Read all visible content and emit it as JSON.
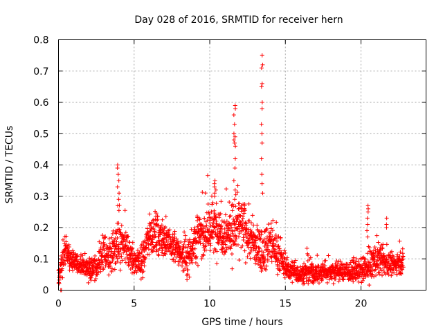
{
  "chart_data": {
    "type": "scatter",
    "title": "Day 028 of 2016, SRMTID for receiver hern",
    "xlabel": "GPS time / hours",
    "ylabel": "SRMTID / TECUs",
    "xlim": [
      0,
      24.3
    ],
    "ylim": [
      0,
      0.8
    ],
    "xticks": [
      0,
      5,
      10,
      15,
      20
    ],
    "xtick_labels": [
      "0",
      "5",
      "10",
      "15",
      "20"
    ],
    "yticks": [
      0,
      0.1,
      0.2,
      0.3,
      0.4,
      0.5,
      0.6,
      0.7,
      0.8
    ],
    "ytick_labels": [
      "0",
      "0.1",
      "0.2",
      "0.3",
      "0.4",
      "0.5",
      "0.6",
      "0.7",
      "0.8"
    ],
    "grid": true,
    "marker": "plus",
    "color": "#ff0000",
    "point_count": 2400,
    "envelope": {
      "x": [
        0.0,
        0.3,
        0.5,
        1.0,
        1.5,
        2.0,
        2.5,
        3.0,
        3.5,
        4.0,
        4.5,
        5.0,
        5.5,
        6.0,
        6.5,
        7.0,
        7.5,
        8.0,
        8.5,
        9.0,
        9.5,
        10.0,
        10.5,
        11.0,
        11.5,
        12.0,
        12.5,
        13.0,
        13.5,
        14.0,
        14.5,
        15.0,
        15.5,
        16.0,
        16.5,
        17.0,
        17.5,
        18.0,
        18.5,
        19.0,
        19.5,
        20.0,
        20.5,
        21.0,
        21.5,
        22.0,
        22.8
      ],
      "center": [
        0.04,
        0.1,
        0.12,
        0.09,
        0.08,
        0.07,
        0.07,
        0.12,
        0.11,
        0.15,
        0.13,
        0.09,
        0.09,
        0.18,
        0.18,
        0.16,
        0.14,
        0.12,
        0.1,
        0.16,
        0.18,
        0.19,
        0.2,
        0.18,
        0.19,
        0.21,
        0.18,
        0.14,
        0.13,
        0.15,
        0.12,
        0.07,
        0.06,
        0.05,
        0.06,
        0.05,
        0.06,
        0.06,
        0.06,
        0.06,
        0.06,
        0.06,
        0.07,
        0.1,
        0.09,
        0.08,
        0.09
      ],
      "spread": [
        0.03,
        0.05,
        0.04,
        0.03,
        0.03,
        0.03,
        0.04,
        0.06,
        0.05,
        0.08,
        0.06,
        0.04,
        0.05,
        0.06,
        0.06,
        0.05,
        0.05,
        0.04,
        0.05,
        0.07,
        0.07,
        0.08,
        0.07,
        0.07,
        0.08,
        0.08,
        0.08,
        0.06,
        0.06,
        0.07,
        0.05,
        0.03,
        0.03,
        0.03,
        0.04,
        0.03,
        0.03,
        0.03,
        0.03,
        0.03,
        0.03,
        0.03,
        0.05,
        0.05,
        0.04,
        0.03,
        0.03
      ]
    },
    "spikes": [
      {
        "x": 3.95,
        "values": [
          0.4,
          0.39,
          0.37,
          0.35,
          0.33,
          0.31,
          0.29,
          0.27
        ]
      },
      {
        "x": 10.35,
        "values": [
          0.35,
          0.34,
          0.33,
          0.32,
          0.31,
          0.3
        ]
      },
      {
        "x": 11.65,
        "values": [
          0.59,
          0.58,
          0.56,
          0.53,
          0.5,
          0.49,
          0.48,
          0.47,
          0.46,
          0.42,
          0.39,
          0.35,
          0.32,
          0.29
        ]
      },
      {
        "x": 13.45,
        "values": [
          0.75,
          0.72,
          0.71,
          0.66,
          0.65,
          0.6,
          0.58,
          0.53,
          0.5,
          0.47,
          0.42,
          0.37,
          0.34,
          0.31
        ]
      },
      {
        "x": 20.45,
        "values": [
          0.27,
          0.26,
          0.25,
          0.23,
          0.21,
          0.19,
          0.17
        ]
      },
      {
        "x": 21.7,
        "values": [
          0.23,
          0.21,
          0.2
        ]
      }
    ]
  }
}
